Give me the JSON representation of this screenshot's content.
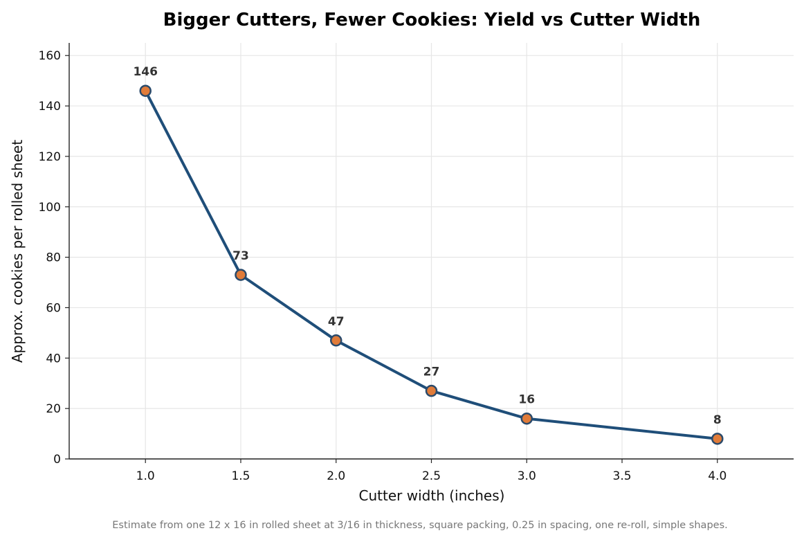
{
  "chart_data": {
    "type": "line",
    "title": "Bigger Cutters, Fewer Cookies: Yield vs Cutter Width",
    "xlabel": "Cutter width (inches)",
    "ylabel": "Approx. cookies per rolled sheet",
    "footnote": "Estimate from one 12 x 16 in rolled sheet at 3/16 in thickness, square packing, 0.25 in spacing, one re-roll, simple shapes.",
    "xlim": [
      0.6,
      4.4
    ],
    "ylim": [
      0,
      165
    ],
    "x_ticks": [
      1.0,
      1.5,
      2.0,
      2.5,
      3.0,
      3.5,
      4.0
    ],
    "x_tick_labels": [
      "1.0",
      "1.5",
      "2.0",
      "2.5",
      "3.0",
      "3.5",
      "4.0"
    ],
    "y_ticks": [
      0,
      20,
      40,
      60,
      80,
      100,
      120,
      140,
      160
    ],
    "y_tick_labels": [
      "0",
      "20",
      "40",
      "60",
      "80",
      "100",
      "120",
      "140",
      "160"
    ],
    "grid": true,
    "legend": "none",
    "series": [
      {
        "x": [
          1.0,
          1.5,
          2.0,
          2.5,
          3.0,
          4.0
        ],
        "y": [
          146,
          73,
          47,
          27,
          16,
          8
        ],
        "labels": [
          "146",
          "73",
          "47",
          "27",
          "16",
          "8"
        ],
        "line_color": "#1f4e79",
        "marker_color": "#e07b39",
        "marker_edge_color": "#2a4a6b"
      }
    ]
  }
}
